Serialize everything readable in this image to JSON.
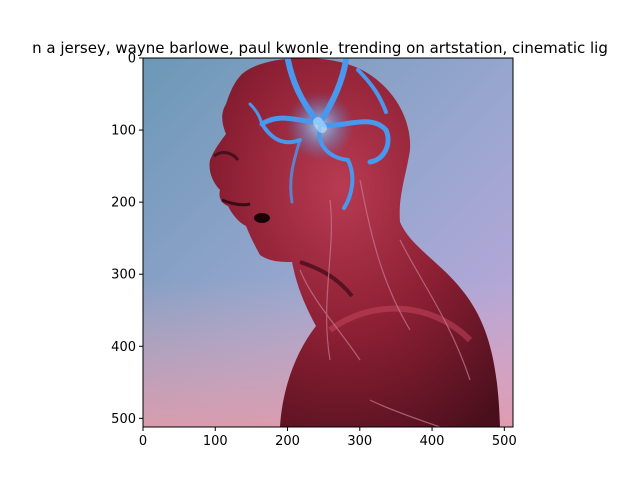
{
  "chart_data": {
    "type": "image",
    "title": "n a jersey,  wayne barlowe, paul kwonle,  trending on artstation, cinematic lig",
    "xlim": [
      0,
      512
    ],
    "ylim": [
      512,
      0
    ],
    "x_ticks": [
      0,
      100,
      200,
      300,
      400,
      500
    ],
    "y_ticks": [
      0,
      100,
      200,
      300,
      400,
      500
    ],
    "image": {
      "subject": "digital artwork of a red skinned humanoid figure in profile facing left with glowing blue veins on the skull",
      "colors": {
        "background_top": "#6f9bb8",
        "background_right": "#b9a2dc",
        "background_bottom": "#e7a3b0",
        "skin": "#8c1f33",
        "skin_highlight": "#b23a4f",
        "skin_shadow": "#4a0f1c",
        "veins": "#3f8fe6",
        "vein_glow": "#8fd0ff"
      }
    }
  }
}
